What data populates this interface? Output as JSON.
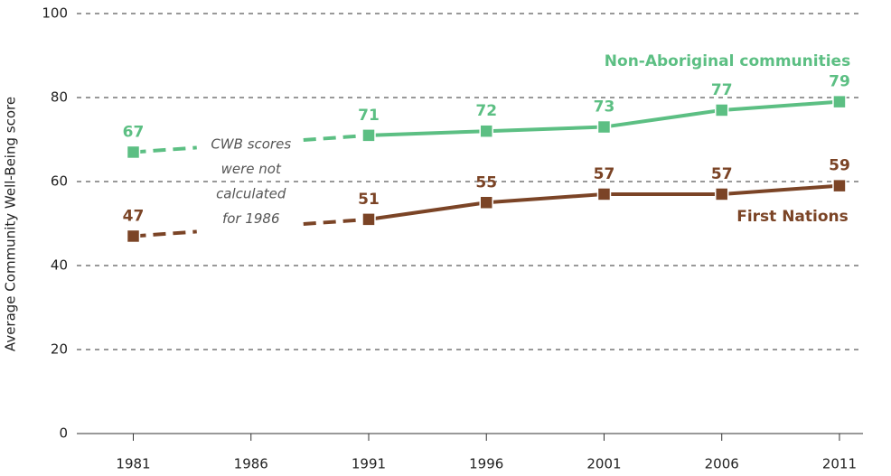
{
  "chart_data": {
    "type": "line",
    "y_label": "Average Community Well-Being score",
    "x": [
      1981,
      1986,
      1991,
      1996,
      2001,
      2006,
      2011
    ],
    "xlim": [
      1978.6,
      2012
    ],
    "xticks": [
      1981,
      1986,
      1991,
      1996,
      2001,
      2006,
      2011
    ],
    "ylim": [
      0,
      100
    ],
    "yticks": [
      0,
      20,
      40,
      60,
      80,
      100
    ],
    "grid": true,
    "annotation": [
      "CWB scores",
      "were not",
      "calculated",
      "for 1986"
    ],
    "series": [
      {
        "name": "Non-Aboriginal communities",
        "color": "#5cbf83",
        "values": [
          67,
          null,
          71,
          72,
          73,
          77,
          79
        ]
      },
      {
        "name": "First Nations",
        "color": "#7b4426",
        "values": [
          47,
          null,
          51,
          55,
          57,
          57,
          59
        ]
      }
    ]
  }
}
